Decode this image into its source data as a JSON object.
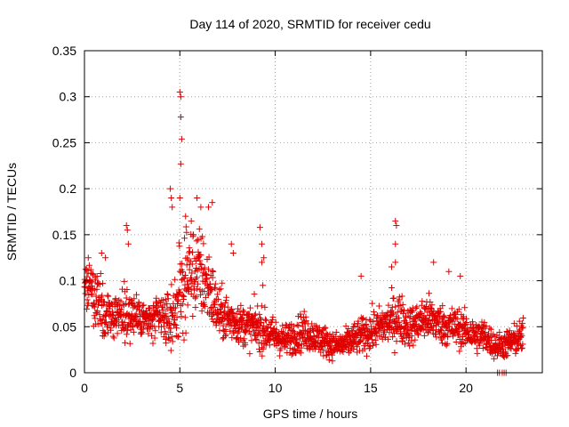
{
  "chart_data": {
    "type": "scatter",
    "title": "Day 114 of 2020, SRMTID for receiver cedu",
    "xlabel": "GPS time / hours",
    "ylabel": "SRMTID / TECUs",
    "xlim": [
      0,
      24
    ],
    "ylim": [
      0,
      0.35
    ],
    "x_ticks": [
      0,
      5,
      10,
      15,
      20
    ],
    "x_tick_labels": [
      "0",
      "5",
      "10",
      "15",
      "20"
    ],
    "y_ticks": [
      0,
      0.05,
      0.1,
      0.15,
      0.2,
      0.25,
      0.3,
      0.35
    ],
    "y_tick_labels": [
      "0",
      "0.05",
      "0.1",
      "0.15",
      "0.2",
      "0.25",
      "0.3",
      "0.35"
    ],
    "grid": true,
    "marker": "plus",
    "color": "#e00000",
    "envelope": {
      "x": [
        0,
        0.5,
        1,
        1.5,
        2,
        2.5,
        3,
        3.5,
        4,
        4.5,
        5,
        5.5,
        6,
        6.5,
        7,
        7.5,
        8,
        8.5,
        9,
        9.5,
        10,
        10.5,
        11,
        11.5,
        12,
        12.5,
        13,
        13.5,
        14,
        14.5,
        15,
        15.5,
        16,
        16.5,
        17,
        17.5,
        18,
        18.5,
        19,
        19.5,
        20,
        20.5,
        21,
        21.5,
        22,
        22.5,
        23
      ],
      "median": [
        0.1,
        0.09,
        0.065,
        0.06,
        0.065,
        0.065,
        0.06,
        0.055,
        0.06,
        0.055,
        0.085,
        0.11,
        0.11,
        0.095,
        0.065,
        0.06,
        0.055,
        0.05,
        0.05,
        0.045,
        0.04,
        0.035,
        0.04,
        0.045,
        0.04,
        0.035,
        0.03,
        0.03,
        0.035,
        0.04,
        0.045,
        0.05,
        0.055,
        0.06,
        0.05,
        0.055,
        0.06,
        0.055,
        0.05,
        0.05,
        0.045,
        0.04,
        0.04,
        0.03,
        0.03,
        0.035,
        0.04
      ],
      "spread": [
        0.025,
        0.02,
        0.02,
        0.018,
        0.022,
        0.02,
        0.015,
        0.015,
        0.018,
        0.02,
        0.035,
        0.035,
        0.035,
        0.03,
        0.02,
        0.018,
        0.015,
        0.015,
        0.018,
        0.015,
        0.013,
        0.012,
        0.013,
        0.015,
        0.012,
        0.012,
        0.01,
        0.01,
        0.012,
        0.013,
        0.015,
        0.015,
        0.018,
        0.02,
        0.015,
        0.015,
        0.018,
        0.015,
        0.015,
        0.015,
        0.013,
        0.013,
        0.013,
        0.01,
        0.01,
        0.012,
        0.013
      ]
    },
    "highlights": [
      {
        "x": 0.2,
        "y": 0.125
      },
      {
        "x": 0.9,
        "y": 0.13
      },
      {
        "x": 1.1,
        "y": 0.125
      },
      {
        "x": 2.2,
        "y": 0.16
      },
      {
        "x": 2.25,
        "y": 0.155
      },
      {
        "x": 2.3,
        "y": 0.14
      },
      {
        "x": 4.5,
        "y": 0.2
      },
      {
        "x": 4.55,
        "y": 0.19
      },
      {
        "x": 4.6,
        "y": 0.18
      },
      {
        "x": 5.0,
        "y": 0.305
      },
      {
        "x": 5.05,
        "y": 0.3
      },
      {
        "x": 5.05,
        "y": 0.278
      },
      {
        "x": 5.1,
        "y": 0.254
      },
      {
        "x": 5.05,
        "y": 0.227
      },
      {
        "x": 5.0,
        "y": 0.19
      },
      {
        "x": 5.3,
        "y": 0.17
      },
      {
        "x": 5.6,
        "y": 0.165
      },
      {
        "x": 5.9,
        "y": 0.19
      },
      {
        "x": 6.1,
        "y": 0.18
      },
      {
        "x": 6.5,
        "y": 0.18
      },
      {
        "x": 6.7,
        "y": 0.185
      },
      {
        "x": 7.7,
        "y": 0.14
      },
      {
        "x": 7.8,
        "y": 0.13
      },
      {
        "x": 9.2,
        "y": 0.158
      },
      {
        "x": 9.3,
        "y": 0.14
      },
      {
        "x": 9.3,
        "y": 0.12
      },
      {
        "x": 9.4,
        "y": 0.125
      },
      {
        "x": 9.35,
        "y": 0.095
      },
      {
        "x": 14.5,
        "y": 0.105
      },
      {
        "x": 16.3,
        "y": 0.165
      },
      {
        "x": 16.35,
        "y": 0.16
      },
      {
        "x": 16.3,
        "y": 0.14
      },
      {
        "x": 16.3,
        "y": 0.12
      },
      {
        "x": 16.1,
        "y": 0.115
      },
      {
        "x": 18.3,
        "y": 0.12
      },
      {
        "x": 19.1,
        "y": 0.11
      },
      {
        "x": 19.7,
        "y": 0.105
      }
    ],
    "zero_points": [
      {
        "x": 21.65,
        "y": 0
      },
      {
        "x": 21.75,
        "y": 0
      },
      {
        "x": 21.9,
        "y": 0
      },
      {
        "x": 22.0,
        "y": 0
      },
      {
        "x": 22.1,
        "y": 0
      }
    ],
    "x_max_data": 23.0
  }
}
